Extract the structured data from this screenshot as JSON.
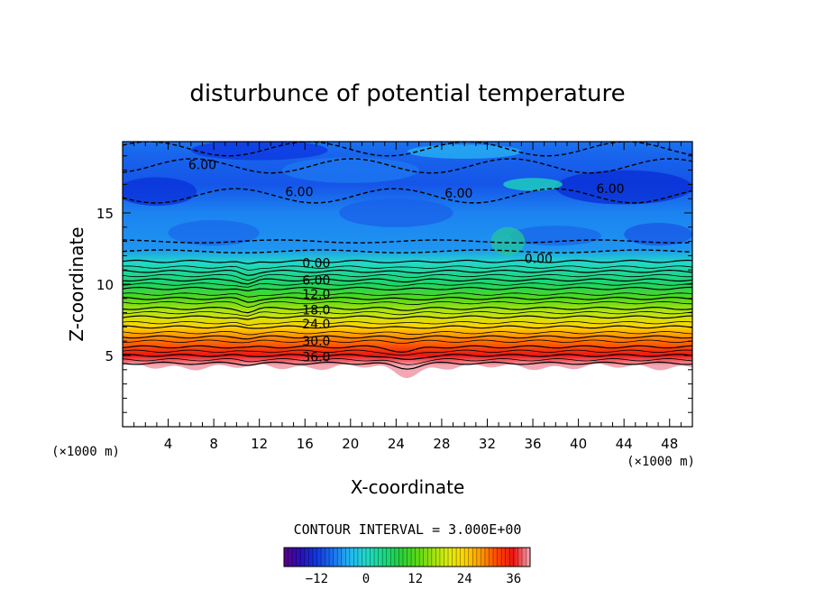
{
  "chart_data": {
    "type": "heatmap",
    "title": "disturbunce of potential temperature",
    "xlabel": "X-coordinate",
    "ylabel": "Z-coordinate",
    "x_unit": "(×1000 m)",
    "z_unit": "(×1000 m)",
    "xlim": [
      0,
      50
    ],
    "ylim": [
      0,
      20
    ],
    "x_ticks": [
      4,
      8,
      12,
      16,
      20,
      24,
      28,
      32,
      36,
      40,
      44,
      48
    ],
    "y_ticks": [
      5,
      10,
      15
    ],
    "contour_interval_text": "CONTOUR INTERVAL = 3.000E+00",
    "contour_interval": 3.0,
    "surface_top_z": 4.2,
    "field_top_value": -8,
    "field_levels": [
      {
        "z": 4.3,
        "value": 40
      },
      {
        "z": 5.0,
        "value": 36
      },
      {
        "z": 6.0,
        "value": 30
      },
      {
        "z": 7.0,
        "value": 24
      },
      {
        "z": 8.0,
        "value": 18
      },
      {
        "z": 9.0,
        "value": 12
      },
      {
        "z": 10.0,
        "value": 6
      },
      {
        "z": 11.5,
        "value": 0
      },
      {
        "z": 12.5,
        "value": -6
      },
      {
        "z": 15.0,
        "value": -7
      },
      {
        "z": 17.0,
        "value": -10
      },
      {
        "z": 19.0,
        "value": -9
      },
      {
        "z": 20.0,
        "value": -8
      }
    ],
    "contour_labels": [
      {
        "text": "6.00",
        "x": 7.0,
        "z": 18.4,
        "dashed": true
      },
      {
        "text": "6.00",
        "x": 15.5,
        "z": 16.5,
        "dashed": true
      },
      {
        "text": "6.00",
        "x": 29.5,
        "z": 16.4,
        "dashed": true
      },
      {
        "text": "6.00",
        "x": 42.8,
        "z": 16.7,
        "dashed": true
      },
      {
        "text": "0.00",
        "x": 17.0,
        "z": 11.5,
        "dashed": false
      },
      {
        "text": "0.00",
        "x": 36.5,
        "z": 11.8,
        "dashed": false
      },
      {
        "text": "6.00",
        "x": 17.0,
        "z": 10.3,
        "dashed": false
      },
      {
        "text": "12.0",
        "x": 17.0,
        "z": 9.3,
        "dashed": false
      },
      {
        "text": "18.0",
        "x": 17.0,
        "z": 8.2,
        "dashed": false
      },
      {
        "text": "24.0",
        "x": 17.0,
        "z": 7.2,
        "dashed": false
      },
      {
        "text": "30.0",
        "x": 17.0,
        "z": 6.0,
        "dashed": false
      },
      {
        "text": "36.0",
        "x": 17.0,
        "z": 4.9,
        "dashed": false
      }
    ],
    "colorbar": {
      "min": -20,
      "max": 40,
      "ticks": [
        -12,
        0,
        12,
        24,
        36
      ]
    }
  }
}
